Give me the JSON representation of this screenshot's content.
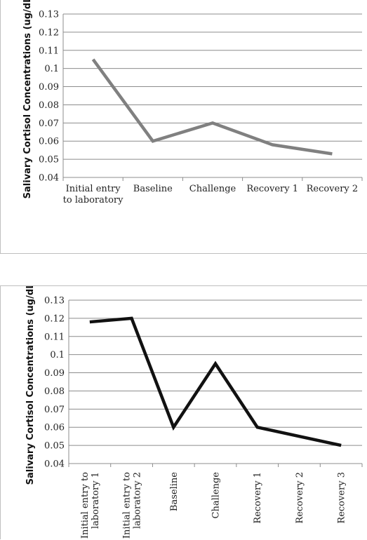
{
  "chart_data": [
    {
      "type": "line",
      "ylabel": "Salivary Cortisol Concentrations (ug/dL)",
      "xlabel": "",
      "title": "",
      "ylim": [
        0.04,
        0.13
      ],
      "ytick_step": 0.01,
      "yticks": [
        "0.04",
        "0.05",
        "0.06",
        "0.07",
        "0.08",
        "0.09",
        "0.1",
        "0.11",
        "0.12",
        "0.13"
      ],
      "grid": true,
      "categories": [
        "Initial entry\nto laboratory",
        "Baseline",
        "Challenge",
        "Recovery 1",
        "Recovery 2"
      ],
      "series": [
        {
          "values": [
            0.105,
            0.06,
            0.07,
            0.058,
            0.053
          ],
          "color": "#808080"
        }
      ],
      "label_orientation": "horizontal"
    },
    {
      "type": "line",
      "ylabel": "Salivary Cortisol Concentrations (ug/dL)",
      "xlabel": "",
      "title": "",
      "ylim": [
        0.04,
        0.13
      ],
      "ytick_step": 0.01,
      "yticks": [
        "0.04",
        "0.05",
        "0.06",
        "0.07",
        "0.08",
        "0.09",
        "0.1",
        "0.11",
        "0.12",
        "0.13"
      ],
      "grid": true,
      "categories": [
        "Initial entry to\nlaboratory 1",
        "Initial entry to\nlaboratory 2",
        "Baseline",
        "Challenge",
        "Recovery 1",
        "Recovery 2",
        "Recovery 3"
      ],
      "series": [
        {
          "values": [
            0.118,
            0.12,
            0.06,
            0.095,
            0.06,
            0.055,
            0.05
          ],
          "color": "#111111"
        }
      ],
      "label_orientation": "vertical"
    }
  ]
}
